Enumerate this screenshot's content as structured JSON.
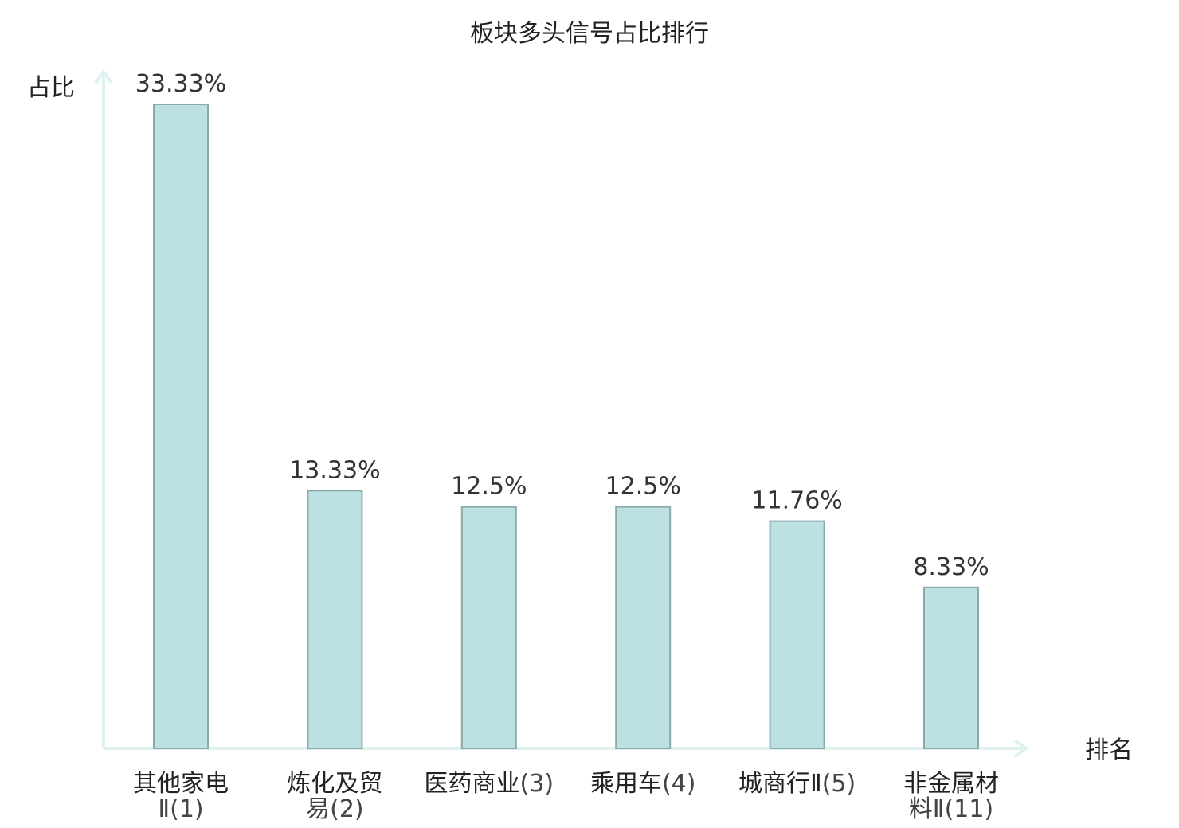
{
  "chart_data": {
    "type": "bar",
    "title": "板块多头信号占比排行",
    "xlabel": "排名",
    "ylabel": "占比",
    "categories": [
      {
        "main": "其他家电",
        "sub": "Ⅱ(1)"
      },
      {
        "main": "炼化及贸",
        "sub": "易(2)"
      },
      {
        "main": "医药商业",
        "sub": "(3)"
      },
      {
        "main": "乘用车",
        "sub": "(4)"
      },
      {
        "main": "城商行Ⅱ",
        "sub": "(5)"
      },
      {
        "main": "非金属材",
        "sub": "料Ⅱ(11)"
      }
    ],
    "values": [
      33.33,
      13.33,
      12.5,
      12.5,
      11.76,
      8.33
    ],
    "value_labels": [
      "33.33%",
      "13.33%",
      "12.5%",
      "12.5%",
      "11.76%",
      "8.33%"
    ],
    "highlight_index": 5,
    "ylim": [
      0,
      33.33
    ],
    "grid": false,
    "legend": "none",
    "colors": {
      "bar_fill": "#bde0e3",
      "bar_stroke": "#8aa9ab",
      "axis": "#e0f2ef",
      "highlight_text": "#e02020",
      "text": "#222222"
    }
  }
}
